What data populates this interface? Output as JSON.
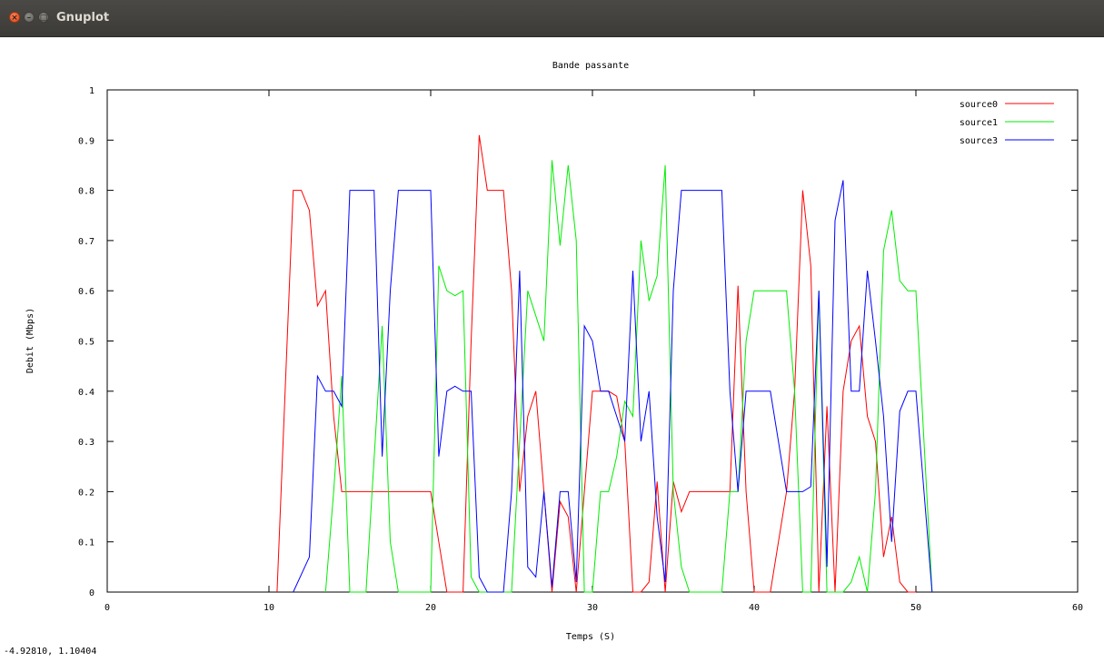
{
  "window": {
    "title": "Gnuplot"
  },
  "status": {
    "coordinates": "-4.92810,  1.10404"
  },
  "chart_data": {
    "type": "line",
    "title": "Bande passante",
    "xlabel": "Temps (S)",
    "ylabel": "Debit (Mbps)",
    "xlim": [
      0,
      60
    ],
    "ylim": [
      0,
      1
    ],
    "xticks": [
      "0",
      "10",
      "20",
      "30",
      "40",
      "50",
      "60"
    ],
    "yticks": [
      "0",
      "0.1",
      "0.2",
      "0.3",
      "0.4",
      "0.5",
      "0.6",
      "0.7",
      "0.8",
      "0.9",
      "1"
    ],
    "grid": false,
    "legend_position": "top-right",
    "series": [
      {
        "name": "source0",
        "color": "#ff0000",
        "x": [
          10.5,
          11.5,
          12,
          12.5,
          13,
          13.5,
          14,
          14.5,
          15,
          16,
          17,
          18,
          19,
          20,
          20.5,
          21,
          22,
          22.5,
          23,
          23.5,
          24,
          24.5,
          25,
          25.5,
          26,
          26.5,
          27,
          27.5,
          28,
          28.5,
          29,
          29.5,
          30,
          30.5,
          31,
          31.5,
          32,
          32.5,
          33,
          33.5,
          34,
          34.5,
          35,
          35.5,
          36,
          36.5,
          37,
          37.5,
          38,
          38.5,
          39,
          39.5,
          40,
          40.5,
          41,
          42,
          42.5,
          43,
          43.5,
          44,
          44.5,
          45,
          45.5,
          46,
          46.5,
          47,
          47.5,
          48,
          48.5,
          49,
          49.5,
          50
        ],
        "y": [
          0,
          0.8,
          0.8,
          0.76,
          0.57,
          0.6,
          0.35,
          0.2,
          0.2,
          0.2,
          0.2,
          0.2,
          0.2,
          0.2,
          0.1,
          0,
          0,
          0.5,
          0.91,
          0.8,
          0.8,
          0.8,
          0.6,
          0.2,
          0.35,
          0.4,
          0.2,
          0,
          0.18,
          0.15,
          0,
          0.2,
          0.4,
          0.4,
          0.4,
          0.39,
          0.3,
          0,
          0,
          0.02,
          0.22,
          0,
          0.22,
          0.16,
          0.2,
          0.2,
          0.2,
          0.2,
          0.2,
          0.2,
          0.61,
          0.2,
          0,
          0,
          0,
          0.2,
          0.4,
          0.8,
          0.65,
          0,
          0.37,
          0,
          0.4,
          0.5,
          0.53,
          0.35,
          0.3,
          0.07,
          0.15,
          0.02,
          0,
          0
        ]
      },
      {
        "name": "source1",
        "color": "#00ee00",
        "x": [
          13.5,
          14,
          14.5,
          15,
          16,
          17,
          17.5,
          18,
          19,
          20,
          20.5,
          21,
          21.5,
          22,
          22.5,
          23,
          24,
          25,
          26,
          26.5,
          27,
          27.5,
          28,
          28.5,
          29,
          29.5,
          30,
          30.5,
          31,
          31.5,
          32,
          32.5,
          33,
          33.5,
          34,
          34.5,
          35,
          35.5,
          36,
          37,
          38,
          38.5,
          39,
          39.5,
          40,
          41,
          41.5,
          42,
          42.5,
          43,
          43.5,
          44,
          44.5,
          45,
          45.5,
          46,
          46.5,
          47,
          47.5,
          48,
          48.5,
          49,
          49.5,
          50,
          51
        ],
        "y": [
          0,
          0.2,
          0.43,
          0,
          0,
          0.53,
          0.1,
          0,
          0,
          0,
          0.65,
          0.6,
          0.59,
          0.6,
          0.03,
          0,
          0,
          0,
          0.6,
          0.55,
          0.5,
          0.86,
          0.69,
          0.85,
          0.7,
          0,
          0,
          0.2,
          0.2,
          0.27,
          0.38,
          0.35,
          0.7,
          0.58,
          0.63,
          0.85,
          0.2,
          0.05,
          0,
          0,
          0,
          0.2,
          0.2,
          0.5,
          0.6,
          0.6,
          0.6,
          0.6,
          0.4,
          0,
          0,
          0.6,
          0,
          0,
          0,
          0.02,
          0.07,
          0,
          0.2,
          0.68,
          0.76,
          0.62,
          0.6,
          0.6,
          0
        ]
      },
      {
        "name": "source3",
        "color": "#0000ff",
        "x": [
          11.5,
          12.5,
          13,
          13.5,
          14,
          14.5,
          15,
          15.5,
          16,
          16.5,
          17,
          17.5,
          18,
          18.5,
          19,
          19.5,
          20,
          20.5,
          21,
          21.5,
          22,
          22.5,
          23,
          23.5,
          24,
          24.5,
          25,
          25.5,
          26,
          26.5,
          27,
          27.5,
          28,
          28.5,
          29,
          29.5,
          30,
          30.5,
          31,
          31.5,
          32,
          32.5,
          33,
          33.5,
          34,
          34.5,
          35,
          35.5,
          36,
          37,
          38,
          38.5,
          39,
          39.5,
          40,
          41,
          41.5,
          42,
          42.5,
          43,
          43.5,
          44,
          44.5,
          45,
          45.5,
          46,
          46.5,
          47,
          47.5,
          48,
          48.5,
          49,
          49.5,
          50,
          51
        ],
        "y": [
          0,
          0.07,
          0.43,
          0.4,
          0.4,
          0.37,
          0.8,
          0.8,
          0.8,
          0.8,
          0.27,
          0.6,
          0.8,
          0.8,
          0.8,
          0.8,
          0.8,
          0.27,
          0.4,
          0.41,
          0.4,
          0.4,
          0.03,
          0,
          0,
          0,
          0.2,
          0.64,
          0.05,
          0.03,
          0.2,
          0.01,
          0.2,
          0.2,
          0.02,
          0.53,
          0.5,
          0.4,
          0.4,
          0.35,
          0.3,
          0.64,
          0.3,
          0.4,
          0.15,
          0.02,
          0.6,
          0.8,
          0.8,
          0.8,
          0.8,
          0.4,
          0.2,
          0.4,
          0.4,
          0.4,
          0.3,
          0.2,
          0.2,
          0.2,
          0.21,
          0.6,
          0.05,
          0.74,
          0.82,
          0.4,
          0.4,
          0.64,
          0.5,
          0.35,
          0.1,
          0.36,
          0.4,
          0.4,
          0
        ]
      }
    ]
  }
}
